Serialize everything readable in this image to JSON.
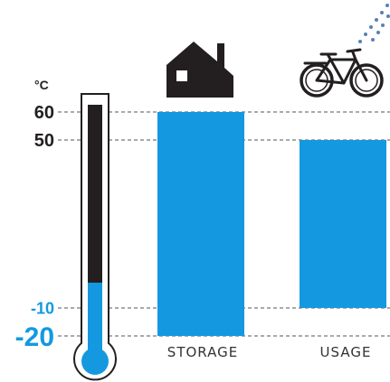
{
  "colors": {
    "accent": "#1499e0",
    "dark": "#231f20",
    "grid": "#555555",
    "text": "#222222"
  },
  "chart_data": {
    "type": "bar",
    "bar_style": "floating-range",
    "unit": "°C",
    "ticks": [
      {
        "value": 60,
        "label": "60",
        "color": "dark"
      },
      {
        "value": 50,
        "label": "50",
        "color": "dark"
      },
      {
        "value": -10,
        "label": "-10",
        "color": "accent"
      },
      {
        "value": -20,
        "label": "-20",
        "color": "accent"
      }
    ],
    "ylim": [
      -20,
      60
    ],
    "grid": "dashed",
    "categories": [
      "STORAGE",
      "USAGE"
    ],
    "ranges": [
      {
        "category": "STORAGE",
        "min": -20,
        "max": 60,
        "icon": "house-icon"
      },
      {
        "category": "USAGE",
        "min": -10,
        "max": 50,
        "icon": "bicycle-rain-icon"
      }
    ],
    "thermometer": {
      "min": -20,
      "max": 60,
      "fill_below": -10
    }
  }
}
